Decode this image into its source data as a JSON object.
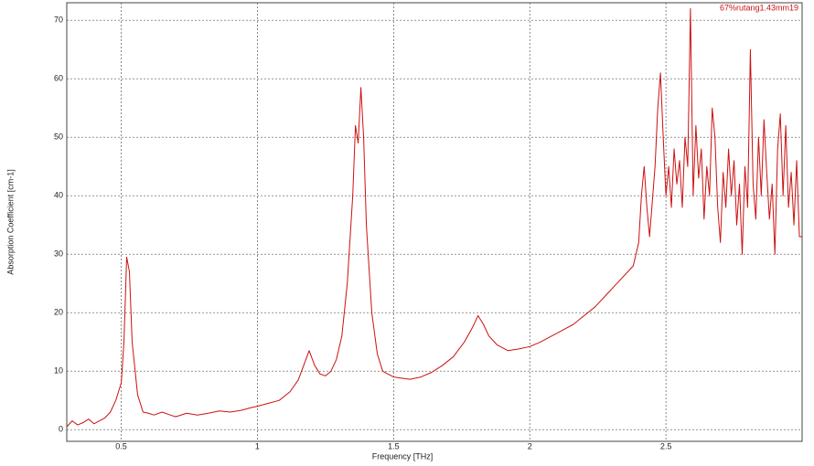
{
  "chart_data": {
    "type": "line",
    "x_label": "Frequency [THz]",
    "y_label": "Absorption Coefficient [cm-1]",
    "xlim": [
      0.3,
      3.0
    ],
    "ylim": [
      -2,
      73
    ],
    "xticks": [
      0.5,
      1,
      1.5,
      2,
      2.5
    ],
    "yticks": [
      0,
      10,
      20,
      30,
      40,
      50,
      60,
      70
    ],
    "grid": true,
    "x": [
      0.3,
      0.32,
      0.34,
      0.36,
      0.38,
      0.4,
      0.42,
      0.44,
      0.46,
      0.48,
      0.5,
      0.51,
      0.52,
      0.53,
      0.54,
      0.56,
      0.58,
      0.6,
      0.62,
      0.65,
      0.68,
      0.7,
      0.74,
      0.78,
      0.82,
      0.86,
      0.9,
      0.94,
      0.98,
      1.0,
      1.04,
      1.08,
      1.12,
      1.15,
      1.17,
      1.19,
      1.21,
      1.23,
      1.25,
      1.27,
      1.29,
      1.31,
      1.33,
      1.35,
      1.36,
      1.37,
      1.38,
      1.39,
      1.4,
      1.42,
      1.44,
      1.46,
      1.48,
      1.5,
      1.53,
      1.56,
      1.6,
      1.64,
      1.68,
      1.72,
      1.76,
      1.79,
      1.81,
      1.83,
      1.85,
      1.88,
      1.92,
      1.96,
      2.0,
      2.04,
      2.08,
      2.12,
      2.16,
      2.2,
      2.24,
      2.28,
      2.32,
      2.36,
      2.38,
      2.4,
      2.41,
      2.42,
      2.43,
      2.44,
      2.46,
      2.47,
      2.48,
      2.49,
      2.5,
      2.51,
      2.52,
      2.53,
      2.54,
      2.55,
      2.56,
      2.57,
      2.58,
      2.59,
      2.6,
      2.61,
      2.62,
      2.63,
      2.64,
      2.65,
      2.66,
      2.67,
      2.68,
      2.69,
      2.7,
      2.71,
      2.72,
      2.73,
      2.74,
      2.75,
      2.76,
      2.77,
      2.78,
      2.79,
      2.8,
      2.81,
      2.82,
      2.83,
      2.84,
      2.85,
      2.86,
      2.87,
      2.88,
      2.89,
      2.9,
      2.91,
      2.92,
      2.93,
      2.94,
      2.95,
      2.96,
      2.97,
      2.98,
      2.99,
      3.0
    ],
    "series": [
      {
        "name": "67%rutang1.43mm19",
        "color": "#cc1111",
        "values": [
          0.5,
          1.5,
          0.8,
          1.2,
          1.8,
          1.0,
          1.5,
          2.0,
          3,
          5,
          8,
          15,
          29.5,
          27,
          15,
          6,
          3,
          2.8,
          2.5,
          3,
          2.5,
          2.2,
          2.8,
          2.5,
          2.8,
          3.2,
          3.0,
          3.3,
          3.8,
          4.0,
          4.5,
          5.0,
          6.5,
          8.5,
          11,
          13.5,
          11,
          9.5,
          9.2,
          10,
          12,
          16,
          25,
          40,
          52,
          49,
          58.5,
          50,
          35,
          20,
          13,
          10,
          9.5,
          9,
          8.8,
          8.6,
          9,
          9.8,
          11,
          12.5,
          15,
          17.5,
          19.5,
          18,
          16,
          14.5,
          13.5,
          13.8,
          14.2,
          15,
          16,
          17,
          18,
          19.5,
          21,
          23,
          25,
          27,
          28,
          32,
          40,
          45,
          38,
          33,
          45,
          55,
          61,
          50,
          40,
          45,
          38,
          48,
          42,
          46,
          38,
          50,
          45,
          72,
          40,
          52,
          43,
          48,
          36,
          45,
          40,
          55,
          50,
          38,
          32,
          44,
          38,
          48,
          40,
          46,
          35,
          42,
          30,
          45,
          38,
          65,
          42,
          36,
          50,
          40,
          53,
          44,
          36,
          42,
          30,
          48,
          54,
          40,
          52,
          38,
          44,
          35,
          46,
          33,
          33
        ]
      }
    ]
  }
}
